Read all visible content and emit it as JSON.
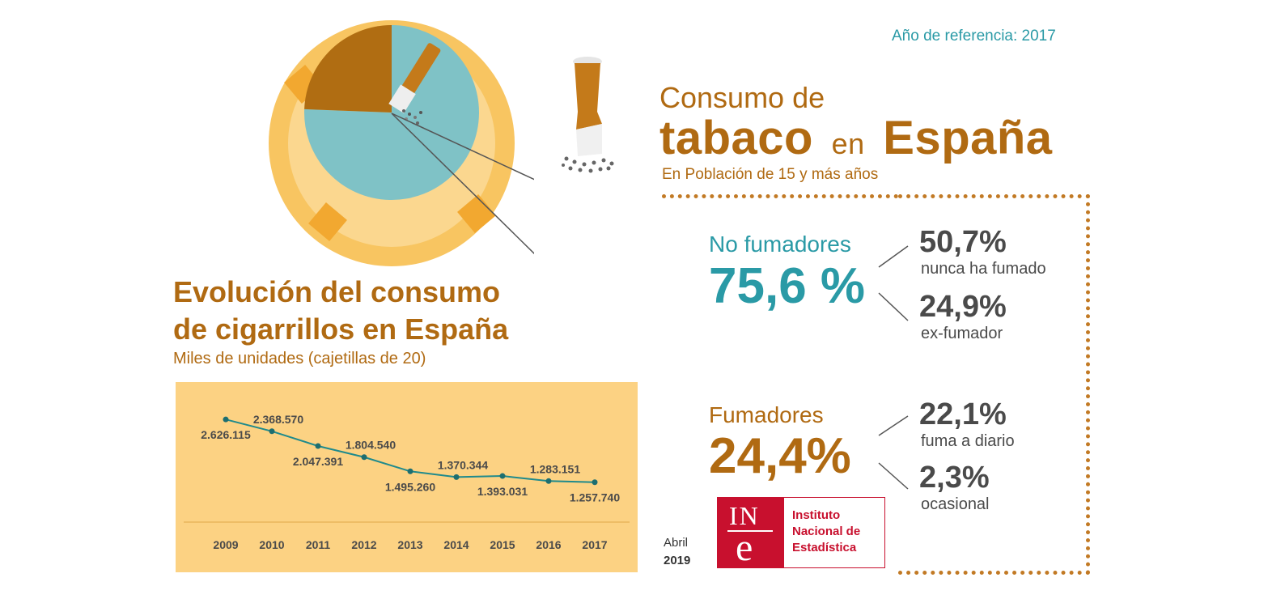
{
  "header": {
    "reference_year": "Año de referencia: 2017",
    "title_line1": "Consumo de",
    "title_word1": "tabaco",
    "title_word2": "en",
    "title_word3": "España",
    "subtitle": "En Población de 15 y más años"
  },
  "non_smokers": {
    "label": "No fumadores",
    "percent": "75,6 %",
    "breakdown": [
      {
        "value": "50,7%",
        "label": "nunca ha fumado"
      },
      {
        "value": "24,9%",
        "label": "ex-fumador"
      }
    ]
  },
  "smokers": {
    "label": "Fumadores",
    "percent": "24,4%",
    "breakdown": [
      {
        "value": "22,1%",
        "label": "fuma a diario"
      },
      {
        "value": "2,3%",
        "label": "ocasional"
      }
    ]
  },
  "evolution": {
    "title_line1": "Evolución del consumo",
    "title_line2": "de cigarrillos en España",
    "subtitle": "Miles de unidades (cajetillas de 20)"
  },
  "footer": {
    "month": "Abril",
    "year": "2019",
    "logo_mark_top": "IN",
    "logo_mark_bottom": "e",
    "logo_line1": "Instituto",
    "logo_line2": "Nacional de",
    "logo_line3": "Estadística"
  },
  "colors": {
    "brown": "#b06a12",
    "teal": "#2a9aa6",
    "pie_teal": "#7fc2c6",
    "pie_brown": "#b06d12",
    "ashtray_outer": "#f8c561",
    "ashtray_mid": "#fbd78f",
    "panel": "#fcd283",
    "line": "#1f8a8c",
    "ine_red": "#c8102e"
  },
  "chart_data": [
    {
      "type": "pie",
      "title": "Consumo de tabaco en España",
      "categories": [
        "No fumadores",
        "Fumadores"
      ],
      "values": [
        75.6,
        24.4
      ]
    },
    {
      "type": "line",
      "title": "Evolución del consumo de cigarrillos en España",
      "ylabel": "Miles de unidades (cajetillas de 20)",
      "categories": [
        "2009",
        "2010",
        "2011",
        "2012",
        "2013",
        "2014",
        "2015",
        "2016",
        "2017"
      ],
      "values": [
        2626115,
        2368570,
        2047391,
        1804540,
        1495260,
        1370344,
        1393031,
        1283151,
        1257740
      ],
      "labels": [
        "2.626.115",
        "2.368.570",
        "2.047.391",
        "1.804.540",
        "1.495.260",
        "1.370.344",
        "1.393.031",
        "1.283.151",
        "1.257.740"
      ],
      "label_positions": [
        "below",
        "above",
        "below",
        "above",
        "below",
        "above",
        "below",
        "above",
        "below"
      ],
      "ylim": [
        0,
        3000000
      ],
      "grid": false
    }
  ]
}
